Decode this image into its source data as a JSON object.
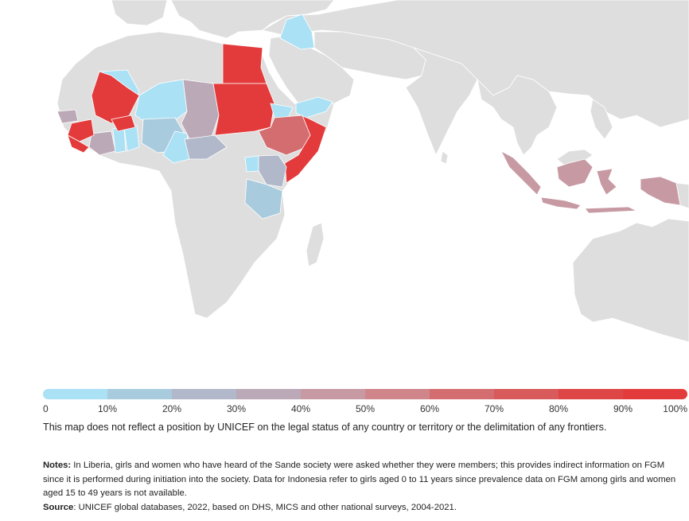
{
  "map": {
    "colors": {
      "land": "#dedede",
      "band_0_10": "#aee4f6",
      "band_10_20": "#a8c9dc",
      "band_20_30": "#b0b8c8",
      "band_30_40": "#bba8b5",
      "band_40_50": "#c99aa2",
      "band_50_60": "#d07f82",
      "band_60_70": "#d46a6b",
      "band_70_80": "#d94e4f",
      "band_80_90": "#dd3c3c",
      "band_90_100": "#e33b3b"
    }
  },
  "legend": {
    "segments": [
      "#abe1f5",
      "#a9cbde",
      "#b0b8c9",
      "#bba9b7",
      "#c79aa3",
      "#cf8589",
      "#d46d70",
      "#d95a5b",
      "#de4646",
      "#e33b3b"
    ],
    "ticks": [
      "0",
      "10%",
      "20%",
      "30%",
      "40%",
      "50%",
      "60%",
      "70%",
      "80%",
      "90%",
      "100%"
    ]
  },
  "disclaimer": "This map does not reflect a position by UNICEF on the legal status of any country or territory or the delimitation of any frontiers.",
  "notes": {
    "notes_label": "Notes:",
    "notes_text": " In Liberia, girls and women who have heard of the Sande society were asked whether they were members; this provides indirect information on FGM since it is performed during initiation into the society. Data for Indonesia refer to girls aged 0 to 11 years since prevalence data on FGM among girls and women aged 15 to 49 years is not available.",
    "source_label": "Source",
    "source_text": ": UNICEF global databases, 2022, based on DHS, MICS and other national surveys, 2004-2021."
  }
}
